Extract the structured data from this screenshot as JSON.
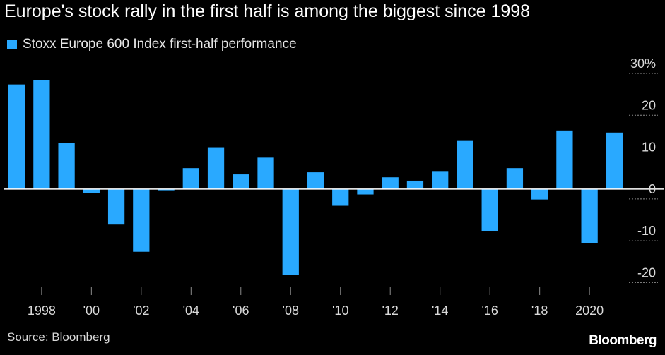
{
  "title": "Europe's stock rally in the first half is among the biggest since 1998",
  "legend": {
    "label": "Stoxx Europe 600 Index first-half performance"
  },
  "source": "Source: Bloomberg",
  "brand": "Bloomberg",
  "colors": {
    "bar": "#29a9ff",
    "background": "#000000",
    "zero_line": "#ffffff",
    "tick": "#d9d9d9"
  },
  "chart_data": {
    "type": "bar",
    "title": "Europe's stock rally in the first half is among the biggest since 1998",
    "xlabel": "",
    "ylabel": "",
    "grid": false,
    "legend_placement": "top-left",
    "ylim": [
      -25,
      30
    ],
    "y_ticks": [
      30,
      20,
      10,
      0,
      -10,
      -20
    ],
    "y_tick_labels": [
      "30%",
      "20",
      "10",
      "0",
      "-10",
      "-20"
    ],
    "y_axis_side": "right",
    "x_tick_labels": [
      {
        "year": 1998,
        "label": "1998"
      },
      {
        "year": 2000,
        "label": "'00"
      },
      {
        "year": 2002,
        "label": "'02"
      },
      {
        "year": 2004,
        "label": "'04"
      },
      {
        "year": 2006,
        "label": "'06"
      },
      {
        "year": 2008,
        "label": "'08"
      },
      {
        "year": 2010,
        "label": "'10"
      },
      {
        "year": 2012,
        "label": "'12"
      },
      {
        "year": 2014,
        "label": "'14"
      },
      {
        "year": 2016,
        "label": "'16"
      },
      {
        "year": 2018,
        "label": "'18"
      },
      {
        "year": 2020,
        "label": "2020"
      }
    ],
    "series": [
      {
        "name": "Stoxx Europe 600 Index first-half performance",
        "x": [
          1997,
          1998,
          1999,
          2000,
          2001,
          2002,
          2003,
          2004,
          2005,
          2006,
          2007,
          2008,
          2009,
          2010,
          2011,
          2012,
          2013,
          2014,
          2015,
          2016,
          2017,
          2018,
          2019,
          2020,
          2021
        ],
        "values": [
          25.0,
          26.0,
          11.0,
          -1.0,
          -8.5,
          -15.0,
          -0.3,
          5.0,
          10.0,
          3.5,
          7.5,
          -20.5,
          4.0,
          -4.0,
          -1.3,
          2.8,
          2.0,
          4.3,
          11.5,
          -10.0,
          5.0,
          -2.5,
          14.0,
          -13.0,
          13.5
        ]
      }
    ]
  }
}
